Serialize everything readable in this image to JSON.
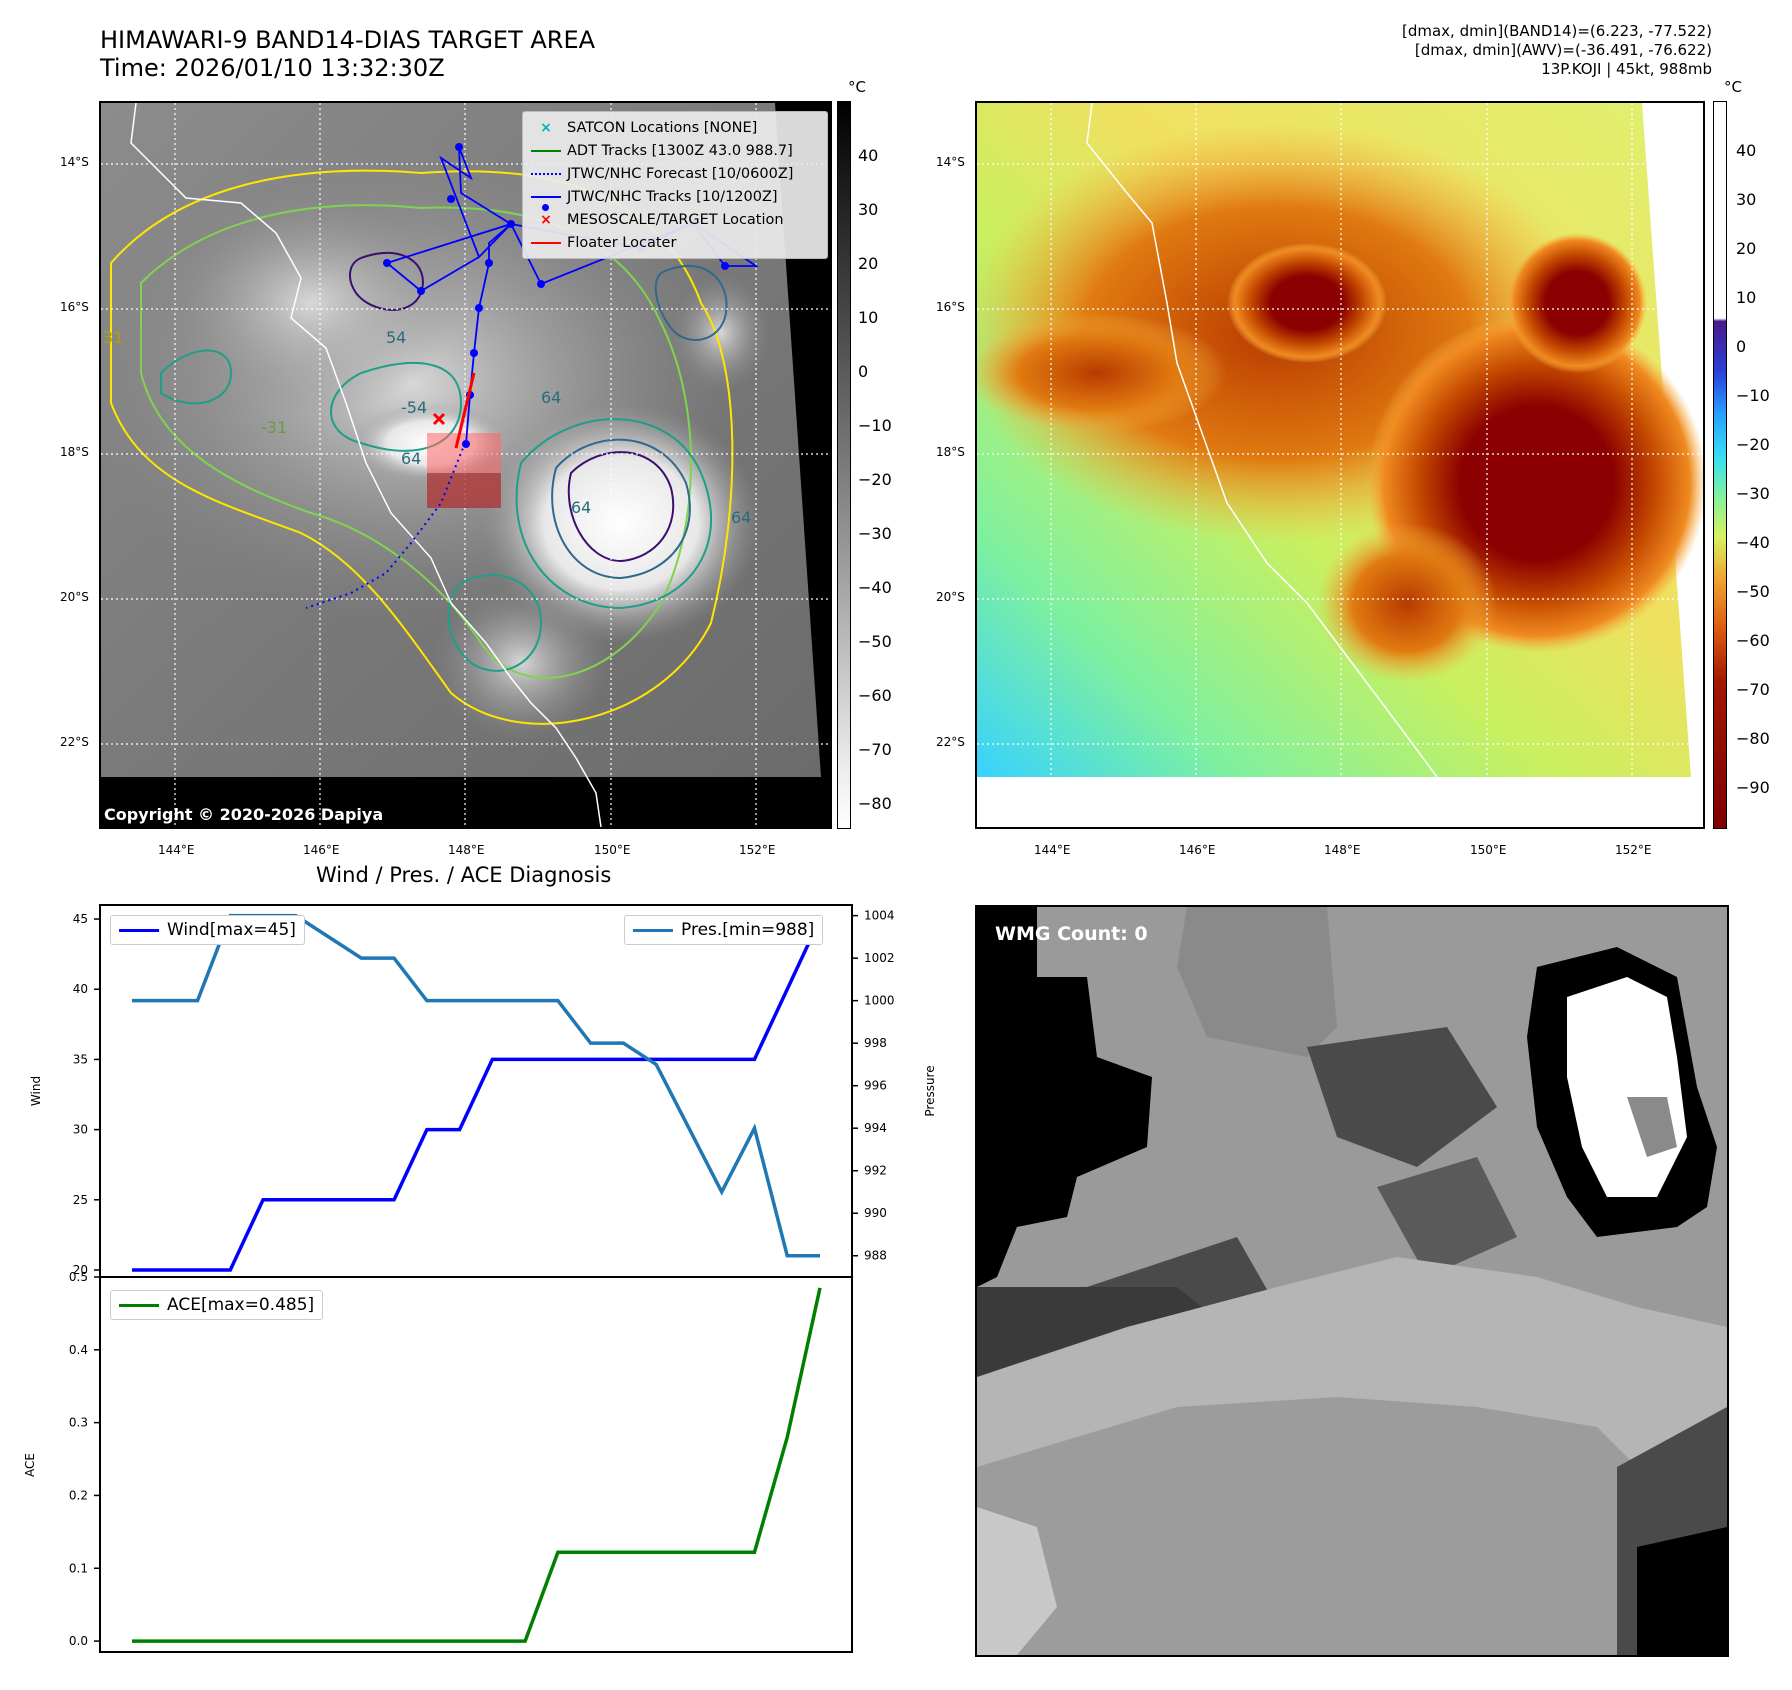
{
  "header": {
    "title_line1": "HIMAWARI-9 BAND14-DIAS TARGET AREA",
    "title_line2": "Time: 2026/01/10 13:32:30Z",
    "info_line1": "[dmax, dmin](BAND14)=(6.223, -77.522)",
    "info_line2": "[dmax, dmin](AWV)=(-36.491, -76.622)",
    "info_line3": "13P.KOJI | 45kt, 988mb"
  },
  "maps": {
    "lat_labels": [
      "14°S",
      "16°S",
      "18°S",
      "20°S",
      "22°S"
    ],
    "lon_labels": [
      "144°E",
      "146°E",
      "148°E",
      "150°E",
      "152°E"
    ],
    "copyright": "Copyright © 2020-2026 Dapiya",
    "contour_labels": [
      "54",
      "64",
      "31",
      "-31",
      "64",
      "-54",
      "64",
      "64"
    ]
  },
  "left_colorbar": {
    "unit": "°C",
    "ticks": [
      "40",
      "30",
      "20",
      "10",
      "0",
      "−10",
      "−20",
      "−30",
      "−40",
      "−50",
      "−60",
      "−70",
      "−80"
    ]
  },
  "right_colorbar": {
    "unit": "°C",
    "ticks": [
      "40",
      "30",
      "20",
      "10",
      "0",
      "−10",
      "−20",
      "−30",
      "−40",
      "−50",
      "−60",
      "−70",
      "−80",
      "−90"
    ]
  },
  "legend": {
    "items": [
      {
        "label": "SATCON Locations [NONE]",
        "color": "#00b3b3",
        "symbol": "x"
      },
      {
        "label": "ADT Tracks [1300Z 43.0 988.7]",
        "color": "#008000",
        "symbol": "line"
      },
      {
        "label": "JTWC/NHC Forecast [10/0600Z]",
        "color": "#0000ff",
        "symbol": "dotted"
      },
      {
        "label": "JTWC/NHC Tracks [10/1200Z]",
        "color": "#0000ff",
        "symbol": "line-dot"
      },
      {
        "label": "MESOSCALE/TARGET Location",
        "color": "#ff0000",
        "symbol": "x"
      },
      {
        "label": "Floater Locater",
        "color": "#ff0000",
        "symbol": "line"
      }
    ]
  },
  "wmg": {
    "label": "WMG Count: 0"
  },
  "chart_data": [
    {
      "type": "line",
      "title": "Wind / Pres. / ACE Diagnosis",
      "ylabel": "Wind",
      "ylabel_right": "Pressure",
      "x": [
        0,
        1,
        2,
        3,
        4,
        5,
        6,
        7,
        8,
        9,
        10,
        11,
        12,
        13,
        14,
        15,
        16,
        17,
        18,
        19,
        20,
        21
      ],
      "ylim": [
        19.5,
        46
      ],
      "ylim_right": [
        987,
        1004.5
      ],
      "yticks": [
        20,
        25,
        30,
        35,
        40,
        45
      ],
      "yticks_right": [
        988,
        990,
        992,
        994,
        996,
        998,
        1000,
        1002,
        1004
      ],
      "series": [
        {
          "name": "Wind[max=45]",
          "color": "#0000ff",
          "axis": "left",
          "values": [
            20,
            20,
            20,
            20,
            25,
            25,
            25,
            25,
            25,
            30,
            30,
            35,
            35,
            35,
            35,
            35,
            35,
            35,
            35,
            35,
            40,
            45
          ]
        },
        {
          "name": "Pres.[min=988]",
          "color": "#1f77b4",
          "axis": "right",
          "values": [
            1000,
            1000,
            1000,
            1004,
            1004,
            1004,
            1003,
            1002,
            1002,
            1000,
            1000,
            1000,
            1000,
            1000,
            998,
            998,
            997,
            994,
            991,
            994,
            988,
            988
          ]
        }
      ]
    },
    {
      "type": "line",
      "ylabel": "ACE",
      "x": [
        0,
        1,
        2,
        3,
        4,
        5,
        6,
        7,
        8,
        9,
        10,
        11,
        12,
        13,
        14,
        15,
        16,
        17,
        18,
        19,
        20,
        21
      ],
      "ylim": [
        -0.015,
        0.5
      ],
      "yticks": [
        0.0,
        0.1,
        0.2,
        0.3,
        0.4,
        0.5
      ],
      "ytick_labels": [
        "0.0",
        "0.1",
        "0.2",
        "0.3",
        "0.4",
        "0.5"
      ],
      "series": [
        {
          "name": "ACE[max=0.485]",
          "color": "#008000",
          "values": [
            0,
            0,
            0,
            0,
            0,
            0,
            0,
            0,
            0,
            0,
            0,
            0,
            0,
            0.122,
            0.122,
            0.122,
            0.122,
            0.122,
            0.122,
            0.122,
            0.28,
            0.485
          ]
        }
      ]
    }
  ]
}
